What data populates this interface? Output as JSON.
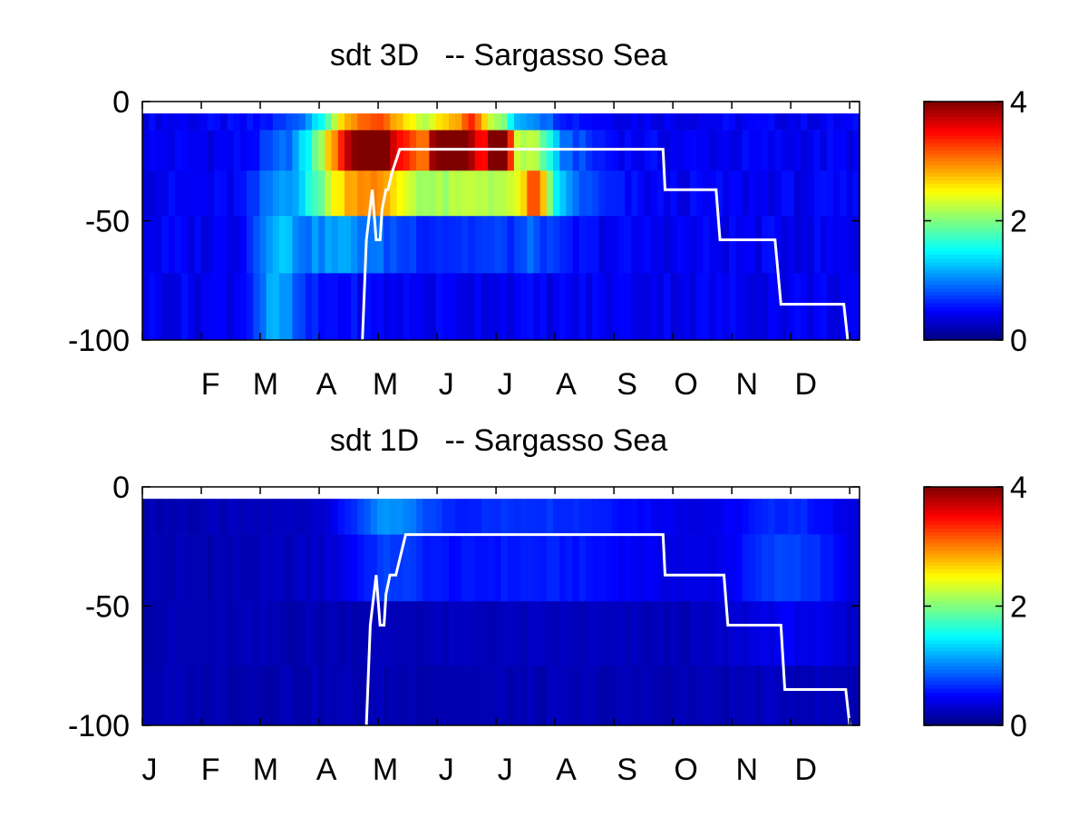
{
  "chart_data": [
    {
      "type": "heatmap",
      "title": "sdt 3D   -- Sargasso Sea",
      "xlabel": "",
      "ylabel": "",
      "xlim": [
        0,
        365
      ],
      "ylim": [
        -100,
        0
      ],
      "y_ticks": [
        0,
        -50,
        -100
      ],
      "x_tick_labels": [
        "F",
        "M",
        "A",
        "M",
        "J",
        "J",
        "A",
        "S",
        "O",
        "N",
        "D"
      ],
      "x_tick_days": [
        31,
        59,
        90,
        120,
        151,
        181,
        212,
        243,
        273,
        304,
        334
      ],
      "depth_layers": [
        {
          "top": -5,
          "bottom": -12
        },
        {
          "top": -12,
          "bottom": -29
        },
        {
          "top": -29,
          "bottom": -48
        },
        {
          "top": -48,
          "bottom": -72
        },
        {
          "top": -72,
          "bottom": -100
        }
      ],
      "field_description": "Color shows sdt value by day of year (x) and depth (y); peak of about 3.5 near -20 m in June–July.",
      "hotspots": [
        {
          "day": 110,
          "depth": -20,
          "value": 1.4,
          "wd": 20,
          "wz": 22
        },
        {
          "day": 120,
          "depth": -25,
          "value": 1.5,
          "wd": 25,
          "wz": 25
        },
        {
          "day": 150,
          "depth": -20,
          "value": 1.6,
          "wd": 45,
          "wz": 25
        },
        {
          "day": 155,
          "depth": -20,
          "value": 3.5,
          "wd": 7,
          "wz": 9
        },
        {
          "day": 182,
          "depth": -20,
          "value": 3.3,
          "wd": 6,
          "wz": 9
        },
        {
          "day": 168,
          "depth": -12,
          "value": 1.8,
          "wd": 8,
          "wz": 14
        },
        {
          "day": 200,
          "depth": -35,
          "value": 1.5,
          "wd": 8,
          "wz": 18
        },
        {
          "day": 185,
          "depth": -35,
          "value": 1.2,
          "wd": 35,
          "wz": 18
        },
        {
          "day": 68,
          "depth": -70,
          "value": 0.8,
          "wd": 12,
          "wz": 40
        },
        {
          "day": 95,
          "depth": -40,
          "value": 0.8,
          "wd": 20,
          "wz": 30
        }
      ],
      "base_value": 0.45,
      "mld_line": {
        "color": "#ffffff",
        "x": [
          112,
          114,
          117,
          119,
          121,
          122,
          124,
          125,
          127,
          131,
          133,
          136,
          265,
          266,
          292,
          294,
          322,
          325,
          357,
          359
        ],
        "y": [
          -100,
          -58,
          -37,
          -58,
          -58,
          -45,
          -37,
          -37,
          -30,
          -20,
          -20,
          -20,
          -20,
          -37,
          -37,
          -58,
          -58,
          -85,
          -85,
          -100
        ]
      },
      "colorbar": {
        "min": 0,
        "max": 4,
        "ticks": [
          0,
          2,
          4
        ],
        "colormap": "jet"
      }
    },
    {
      "type": "heatmap",
      "title": "sdt 1D   -- Sargasso Sea",
      "xlabel": "",
      "ylabel": "",
      "xlim": [
        0,
        365
      ],
      "ylim": [
        -100,
        0
      ],
      "y_ticks": [
        0,
        -50,
        -100
      ],
      "x_tick_labels": [
        "J",
        "F",
        "M",
        "A",
        "M",
        "J",
        "J",
        "A",
        "S",
        "O",
        "N",
        "D"
      ],
      "x_tick_days": [
        0,
        31,
        59,
        90,
        120,
        151,
        181,
        212,
        243,
        273,
        304,
        334
      ],
      "depth_layers": [
        {
          "top": -5,
          "bottom": -20
        },
        {
          "top": -20,
          "bottom": -48
        },
        {
          "top": -48,
          "bottom": -75
        },
        {
          "top": -75,
          "bottom": -100
        }
      ],
      "field_description": "Color shows sdt value by day of year (x) and depth (y); values stay below about 0.7.",
      "hotspots": [
        {
          "day": 125,
          "depth": -18,
          "value": 0.7,
          "wd": 22,
          "wz": 20
        },
        {
          "day": 200,
          "depth": -20,
          "value": 0.55,
          "wd": 80,
          "wz": 25
        },
        {
          "day": 330,
          "depth": -30,
          "value": 0.55,
          "wd": 30,
          "wz": 35
        }
      ],
      "base_value": 0.2,
      "mld_line": {
        "color": "#ffffff",
        "x": [
          114,
          116,
          119,
          121,
          123,
          124,
          126,
          127,
          129,
          134,
          136,
          265,
          266,
          296,
          298,
          325,
          327,
          358,
          360
        ],
        "y": [
          -100,
          -58,
          -37,
          -58,
          -58,
          -45,
          -37,
          -37,
          -37,
          -20,
          -20,
          -20,
          -37,
          -37,
          -58,
          -58,
          -85,
          -85,
          -100
        ]
      },
      "colorbar": {
        "min": 0,
        "max": 4,
        "ticks": [
          0,
          2,
          4
        ],
        "colormap": "jet"
      }
    }
  ]
}
